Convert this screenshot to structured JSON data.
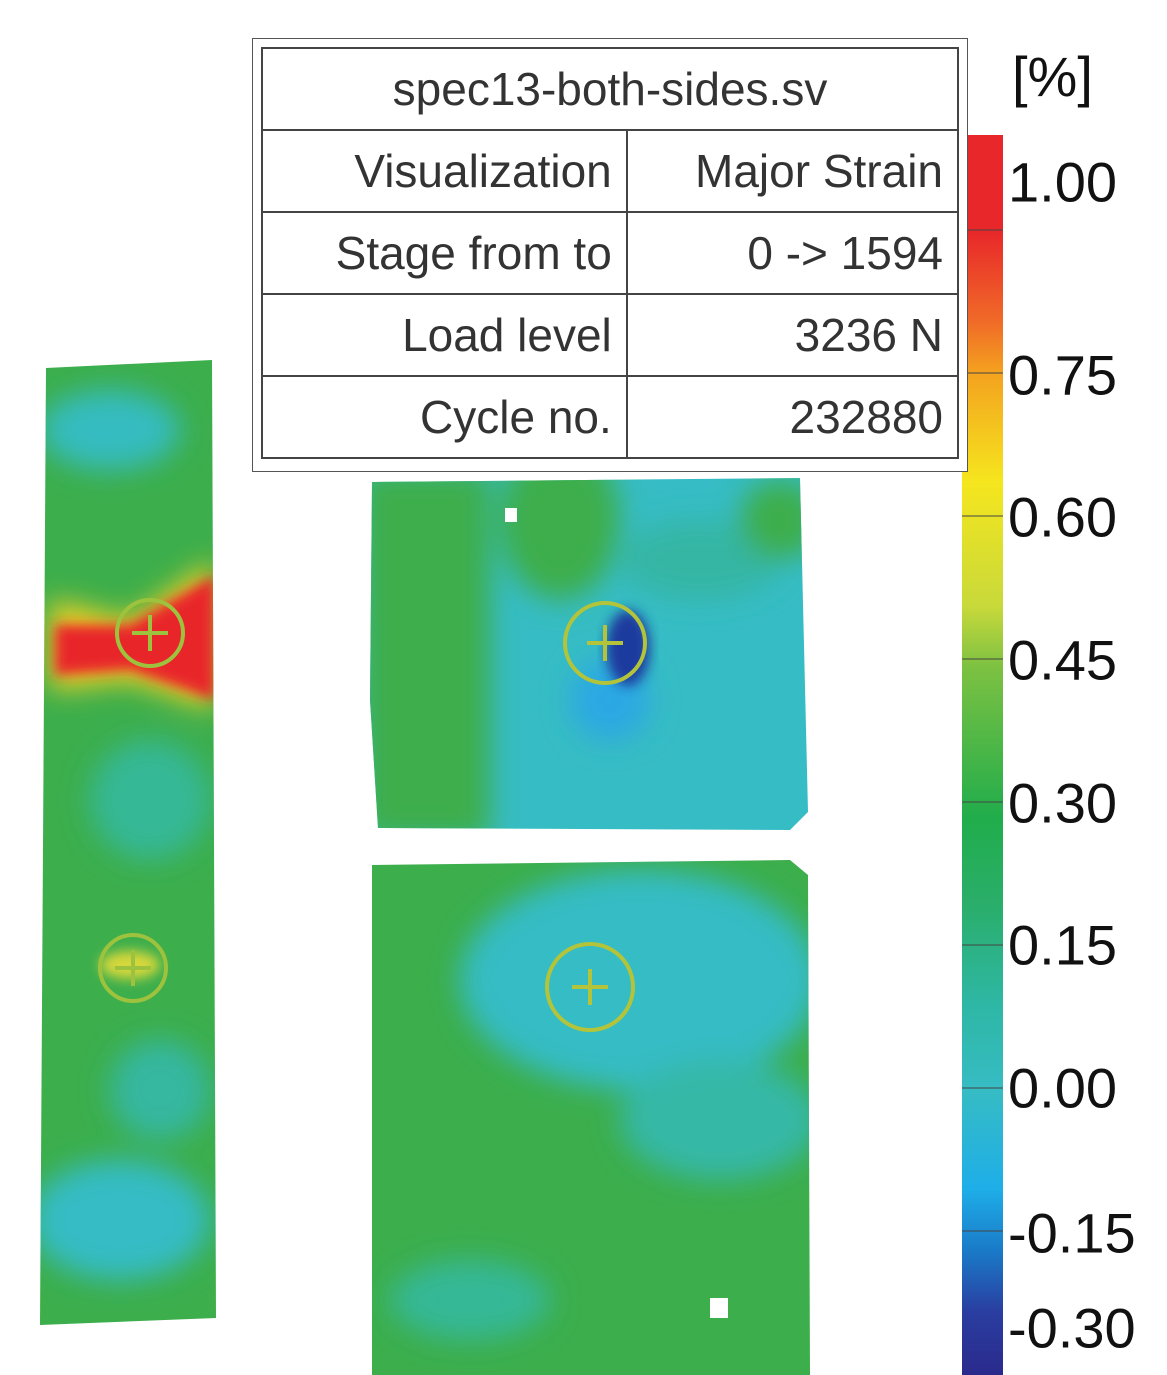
{
  "table": {
    "title": "spec13-both-sides.sv",
    "rows": [
      [
        "Visualization",
        "Major Strain"
      ],
      [
        "Stage from to",
        "0 -> 1594"
      ],
      [
        "Load level",
        "3236 N"
      ],
      [
        "Cycle no.",
        "232880"
      ]
    ]
  },
  "legend": {
    "unit": "[%]",
    "ticks": [
      "1.00",
      "0.75",
      "0.60",
      "0.45",
      "0.30",
      "0.15",
      "0.00",
      "-0.15",
      "-0.30"
    ]
  }
}
